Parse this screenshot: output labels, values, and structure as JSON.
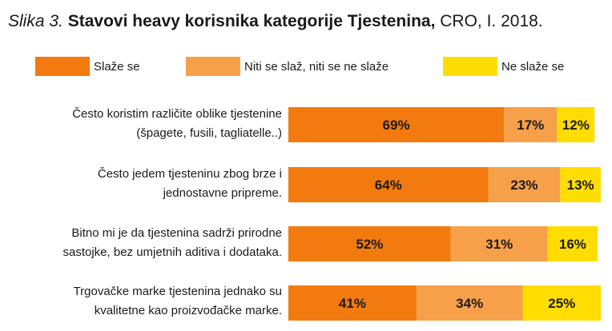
{
  "title": {
    "prefix": "Slika 3.",
    "main": "Stavovi heavy korisnika kategorije Tjestenina,",
    "suffix": "CRO, I. 2018."
  },
  "legend": [
    {
      "label": "Slaže se",
      "color": "#f27a0e"
    },
    {
      "label": "Niti se slaž, niti se ne slaže",
      "color": "#f7a04a"
    },
    {
      "label": "Ne slaže se",
      "color": "#ffdd00"
    }
  ],
  "chart_data": {
    "type": "bar",
    "orientation": "horizontal",
    "stacked": true,
    "categories": [
      [
        "Često koristim različite oblike tjestenine",
        "(špagete, fusili, tagliatelle..)"
      ],
      [
        "Često jedem tjesteninu zbog brze i",
        "jednostavne pripreme."
      ],
      [
        "Bitno mi je da tjestenina sadrži prirodne",
        "sastojke, bez umjetnih aditiva i dodataka."
      ],
      [
        "Trgovačke marke tjestenina jednako su",
        "kvalitetne kao proizvođačke marke."
      ]
    ],
    "series": [
      {
        "name": "Slaže se",
        "values": [
          69,
          64,
          52,
          41
        ],
        "labels": [
          "69%",
          "64%",
          "52%",
          "41%"
        ],
        "color": "#f27a0e"
      },
      {
        "name": "Niti se slaž, niti se ne slaže",
        "values": [
          17,
          23,
          31,
          34
        ],
        "labels": [
          "17%",
          "23%",
          "31%",
          "34%"
        ],
        "color": "#f7a04a"
      },
      {
        "name": "Ne slaže se",
        "values": [
          12,
          13,
          16,
          25
        ],
        "labels": [
          "12%",
          "13%",
          "16%",
          "25%"
        ],
        "color": "#ffdd00"
      }
    ],
    "xlim": [
      0,
      100
    ],
    "grid": false,
    "legend_position": "top"
  }
}
